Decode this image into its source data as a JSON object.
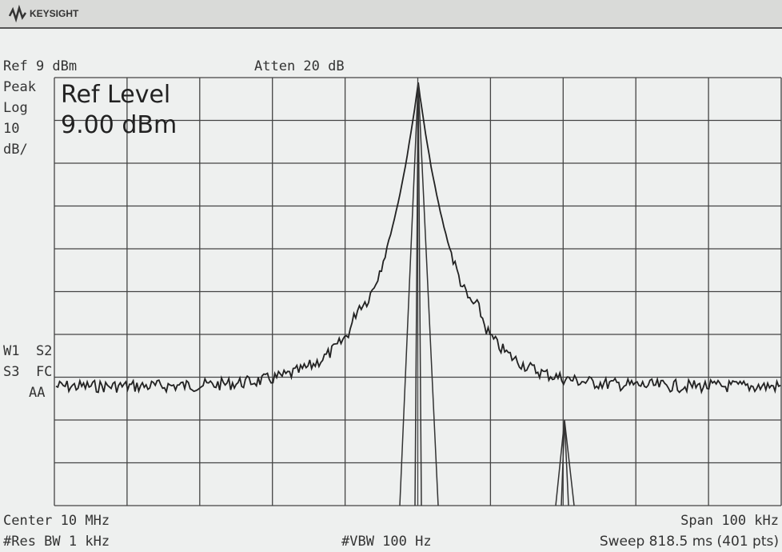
{
  "header": {
    "brand": "KEYSIGHT"
  },
  "top": {
    "ref": "Ref 9 dBm",
    "atten": "Atten 20 dB"
  },
  "left": {
    "detector": "Peak",
    "scale": "Log",
    "div": "10",
    "unit": "dB/",
    "status1": "W1  S2",
    "status2": "S3  FC",
    "status3": "AA"
  },
  "overlay": {
    "title": "Ref Level",
    "value": "9.00 dBm"
  },
  "bottom": {
    "center": "Center 10 MHz",
    "span": "Span 100 kHz",
    "rbw": "#Res BW 1 kHz",
    "vbw": "#VBW 100 Hz",
    "sweep": "Sweep 818.5 ms (401 pts)"
  }
}
